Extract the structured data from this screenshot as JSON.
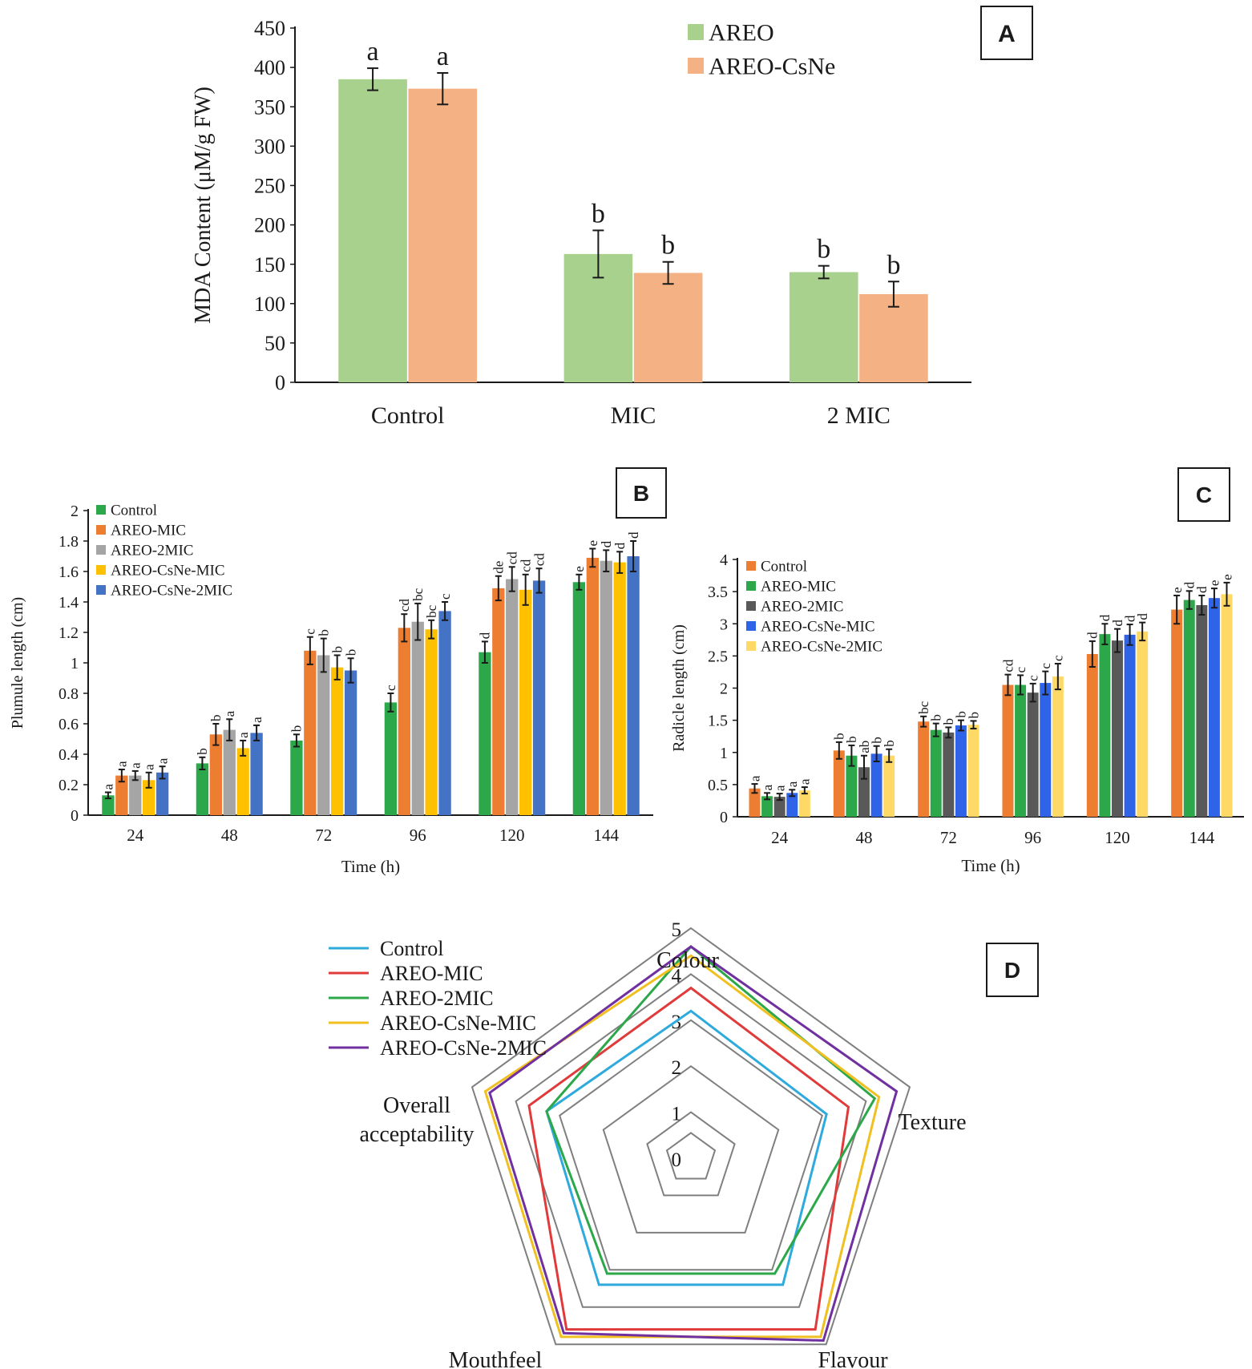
{
  "chart_data": [
    {
      "id": "A",
      "type": "bar",
      "panel_label": "A",
      "title": "",
      "xlabel": "",
      "ylabel": "MDA Content (μM/g FW)",
      "ylim": [
        0,
        450
      ],
      "yticks": [
        "0",
        "50",
        "100",
        "150",
        "200",
        "250",
        "300",
        "350",
        "400",
        "450"
      ],
      "categories": [
        "Control",
        "MIC",
        "2 MIC"
      ],
      "series": [
        {
          "name": "AREO",
          "color": "#a9d18e",
          "values": [
            385,
            163,
            140
          ],
          "errors": [
            14,
            30,
            8
          ],
          "letters": [
            "a",
            "b",
            "b"
          ]
        },
        {
          "name": "AREO-CsNe",
          "color": "#f4b183",
          "values": [
            373,
            139,
            112
          ],
          "errors": [
            20,
            14,
            16
          ],
          "letters": [
            "a",
            "b",
            "b"
          ]
        }
      ],
      "legend_position": "top-right"
    },
    {
      "id": "B",
      "type": "bar",
      "panel_label": "B",
      "title": "",
      "xlabel": "Time (h)",
      "ylabel": "Plumule length (cm)",
      "ylim": [
        0,
        2
      ],
      "yticks": [
        "0",
        "0.2",
        "0.4",
        "0.6",
        "0.8",
        "1",
        "1.2",
        "1.4",
        "1.6",
        "1.8",
        "2"
      ],
      "categories": [
        "24",
        "48",
        "72",
        "96",
        "120",
        "144"
      ],
      "series": [
        {
          "name": "Control",
          "color": "#2ca84a",
          "values": [
            0.13,
            0.34,
            0.49,
            0.74,
            1.07,
            1.53
          ],
          "errors": [
            0.02,
            0.04,
            0.04,
            0.06,
            0.07,
            0.05
          ],
          "letters": [
            "a",
            "b",
            "b",
            "c",
            "d",
            "e"
          ]
        },
        {
          "name": "AREO-MIC",
          "color": "#ed7d31",
          "values": [
            0.26,
            0.53,
            1.08,
            1.23,
            1.49,
            1.69
          ],
          "errors": [
            0.04,
            0.07,
            0.09,
            0.09,
            0.08,
            0.06
          ],
          "letters": [
            "a",
            "b",
            "c",
            "cd",
            "de",
            "e"
          ]
        },
        {
          "name": "AREO-2MIC",
          "color": "#a5a5a5",
          "values": [
            0.26,
            0.56,
            1.05,
            1.27,
            1.55,
            1.67
          ],
          "errors": [
            0.03,
            0.07,
            0.11,
            0.12,
            0.08,
            0.07
          ],
          "letters": [
            "a",
            "a",
            "b",
            "bc",
            "cd",
            "d"
          ]
        },
        {
          "name": "AREO-CsNe-MIC",
          "color": "#ffc000",
          "values": [
            0.23,
            0.44,
            0.97,
            1.22,
            1.48,
            1.66
          ],
          "errors": [
            0.05,
            0.05,
            0.08,
            0.06,
            0.1,
            0.07
          ],
          "letters": [
            "a",
            "a",
            "b",
            "bc",
            "cd",
            "d"
          ]
        },
        {
          "name": "AREO-CsNe-2MIC",
          "color": "#4472c4",
          "values": [
            0.28,
            0.54,
            0.95,
            1.34,
            1.54,
            1.7
          ],
          "errors": [
            0.04,
            0.05,
            0.08,
            0.06,
            0.08,
            0.1
          ],
          "letters": [
            "a",
            "a",
            "b",
            "c",
            "cd",
            "d"
          ]
        }
      ],
      "legend_position": "top-left"
    },
    {
      "id": "C",
      "type": "bar",
      "panel_label": "C",
      "title": "",
      "xlabel": "Time (h)",
      "ylabel": "Radicle length (cm)",
      "ylim": [
        0,
        4
      ],
      "yticks": [
        "0",
        "0.5",
        "1",
        "1.5",
        "2",
        "2.5",
        "3",
        "3.5",
        "4"
      ],
      "categories": [
        "24",
        "48",
        "72",
        "96",
        "120",
        "144"
      ],
      "series": [
        {
          "name": "Control",
          "color": "#ed7d31",
          "values": [
            0.44,
            1.03,
            1.48,
            2.05,
            2.53,
            3.22
          ],
          "errors": [
            0.07,
            0.13,
            0.08,
            0.16,
            0.2,
            0.22
          ],
          "letters": [
            "a",
            "b",
            "bc",
            "cd",
            "d",
            "e"
          ]
        },
        {
          "name": "AREO-MIC",
          "color": "#2ca84a",
          "values": [
            0.32,
            0.95,
            1.35,
            2.05,
            2.84,
            3.37
          ],
          "errors": [
            0.05,
            0.16,
            0.1,
            0.15,
            0.16,
            0.14
          ],
          "letters": [
            "a",
            "b",
            "b",
            "c",
            "d",
            "d"
          ]
        },
        {
          "name": "AREO-2MIC",
          "color": "#595959",
          "values": [
            0.31,
            0.77,
            1.31,
            1.93,
            2.74,
            3.29
          ],
          "errors": [
            0.05,
            0.18,
            0.08,
            0.14,
            0.18,
            0.15
          ],
          "letters": [
            "a",
            "ab",
            "b",
            "c",
            "d",
            "d"
          ]
        },
        {
          "name": "AREO-CsNe-MIC",
          "color": "#2f63e8",
          "values": [
            0.37,
            0.98,
            1.42,
            2.08,
            2.83,
            3.4
          ],
          "errors": [
            0.05,
            0.12,
            0.08,
            0.18,
            0.16,
            0.15
          ],
          "letters": [
            "a",
            "b",
            "b",
            "c",
            "d",
            "e"
          ]
        },
        {
          "name": "AREO-CsNe-2MIC",
          "color": "#ffd966",
          "values": [
            0.41,
            0.95,
            1.43,
            2.18,
            2.88,
            3.46
          ],
          "errors": [
            0.05,
            0.1,
            0.06,
            0.2,
            0.14,
            0.18
          ],
          "letters": [
            "a",
            "b",
            "b",
            "c",
            "d",
            "e"
          ]
        }
      ],
      "legend_position": "top-left"
    },
    {
      "id": "D",
      "type": "radar",
      "panel_label": "D",
      "title": "",
      "axes": [
        "Colour",
        "Texture",
        "Flavour",
        "Mouthfeel",
        "Overall acceptability"
      ],
      "axis_label_lines": [
        [
          "Colour"
        ],
        [
          "Texture"
        ],
        [
          "Flavour"
        ],
        [
          "Mouthfeel"
        ],
        [
          "Overall",
          "acceptability"
        ]
      ],
      "rlim": [
        0,
        5
      ],
      "rticks": [
        "0",
        "1",
        "2",
        "3",
        "4",
        "5"
      ],
      "series": [
        {
          "name": "Control",
          "color": "#2eaadc",
          "values": [
            3.2,
            3.1,
            3.4,
            3.4,
            3.3
          ]
        },
        {
          "name": "AREO-MIC",
          "color": "#e03a3a",
          "values": [
            3.7,
            3.6,
            4.6,
            4.6,
            3.7
          ]
        },
        {
          "name": "AREO-2MIC",
          "color": "#2ca84a",
          "values": [
            4.6,
            4.2,
            3.1,
            3.1,
            3.3
          ]
        },
        {
          "name": "AREO-CsNe-MIC",
          "color": "#f0c020",
          "values": [
            4.4,
            4.3,
            4.8,
            4.8,
            4.7
          ]
        },
        {
          "name": "AREO-CsNe-2MIC",
          "color": "#7030a0",
          "values": [
            4.6,
            4.7,
            4.9,
            4.7,
            4.6
          ]
        }
      ],
      "legend_position": "top-left"
    }
  ]
}
